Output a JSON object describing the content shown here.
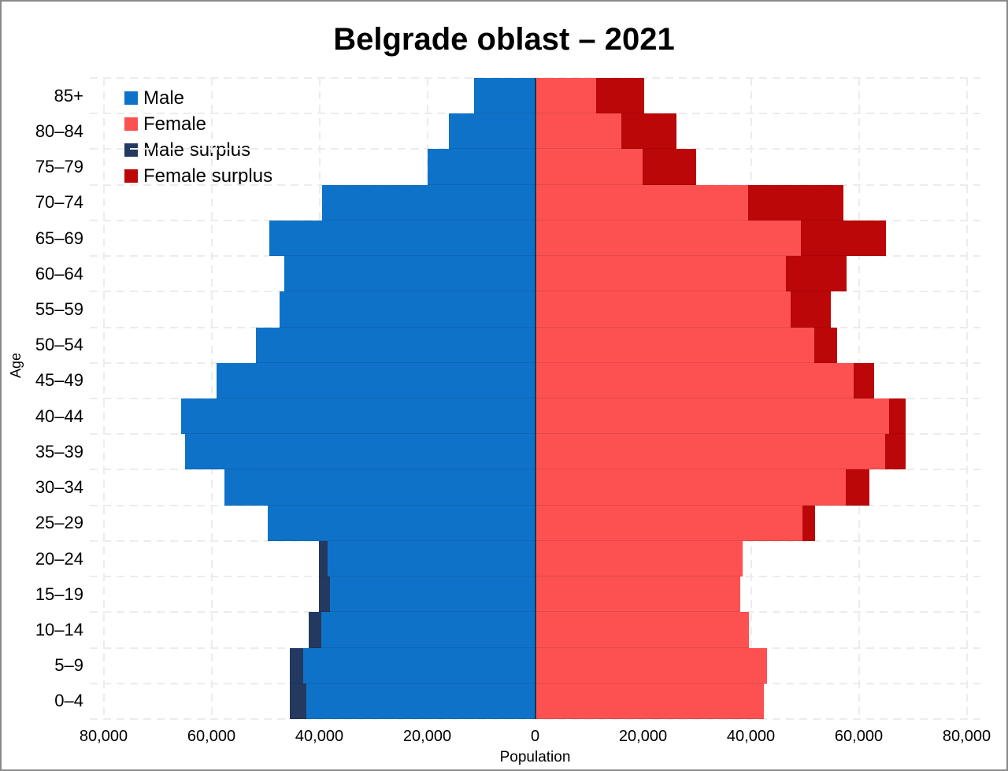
{
  "title": "Belgrade oblast – 2021",
  "x_axis": {
    "label": "Population",
    "ticks": [
      "80,000",
      "60,000",
      "40,000",
      "20,000",
      "0",
      "20,000",
      "40,000",
      "60,000",
      "80,000"
    ]
  },
  "y_axis": {
    "label": "Age"
  },
  "legend": {
    "items": [
      {
        "label": "Male",
        "color": "#0e73c8"
      },
      {
        "label": "Female",
        "color": "#fd5151"
      },
      {
        "label": "Male surplus",
        "color": "#24395f"
      },
      {
        "label": "Female surplus",
        "color": "#bb0707"
      }
    ]
  },
  "chart_data": {
    "type": "bar",
    "variant": "population_pyramid",
    "title": "Belgrade oblast – 2021",
    "xlabel": "Population",
    "ylabel": "Age",
    "x_tick_interval": 20000,
    "x_max_each_side": 82500,
    "grid": true,
    "legend_position": "top-left",
    "categories_bottom_to_top": [
      "0–4",
      "5–9",
      "10–14",
      "15–19",
      "20–24",
      "25–29",
      "30–34",
      "35–39",
      "40–44",
      "45–49",
      "50–54",
      "55–59",
      "60–64",
      "65–69",
      "70–74",
      "75–79",
      "80–84",
      "85+"
    ],
    "series": [
      {
        "name": "Male",
        "side": "left",
        "values": [
          45500,
          45500,
          42000,
          40100,
          40100,
          49600,
          57600,
          64900,
          65600,
          59100,
          51800,
          47400,
          46500,
          49300,
          39500,
          19900,
          16000,
          11300
        ]
      },
      {
        "name": "Female",
        "side": "right",
        "values": [
          42400,
          43000,
          39700,
          38000,
          38500,
          51900,
          62000,
          68700,
          68700,
          62900,
          56000,
          54800,
          57700,
          65000,
          57200,
          29900,
          26200,
          20200
        ]
      }
    ],
    "surplus_rule": "male surplus = max(0, male - female); female surplus = max(0, female - male)"
  }
}
